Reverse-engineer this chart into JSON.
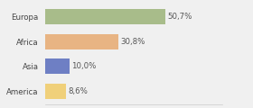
{
  "categories": [
    "Europa",
    "Africa",
    "Asia",
    "America"
  ],
  "values": [
    50.7,
    30.8,
    10.0,
    8.6
  ],
  "labels": [
    "50,7%",
    "30,8%",
    "10,0%",
    "8,6%"
  ],
  "bar_colors": [
    "#a8bc8a",
    "#e8b483",
    "#6e7fc4",
    "#f0d07a"
  ],
  "background_color": "#f0f0f0",
  "xlim": [
    0,
    75
  ],
  "bar_height": 0.62,
  "label_fontsize": 6.2,
  "category_fontsize": 6.2
}
